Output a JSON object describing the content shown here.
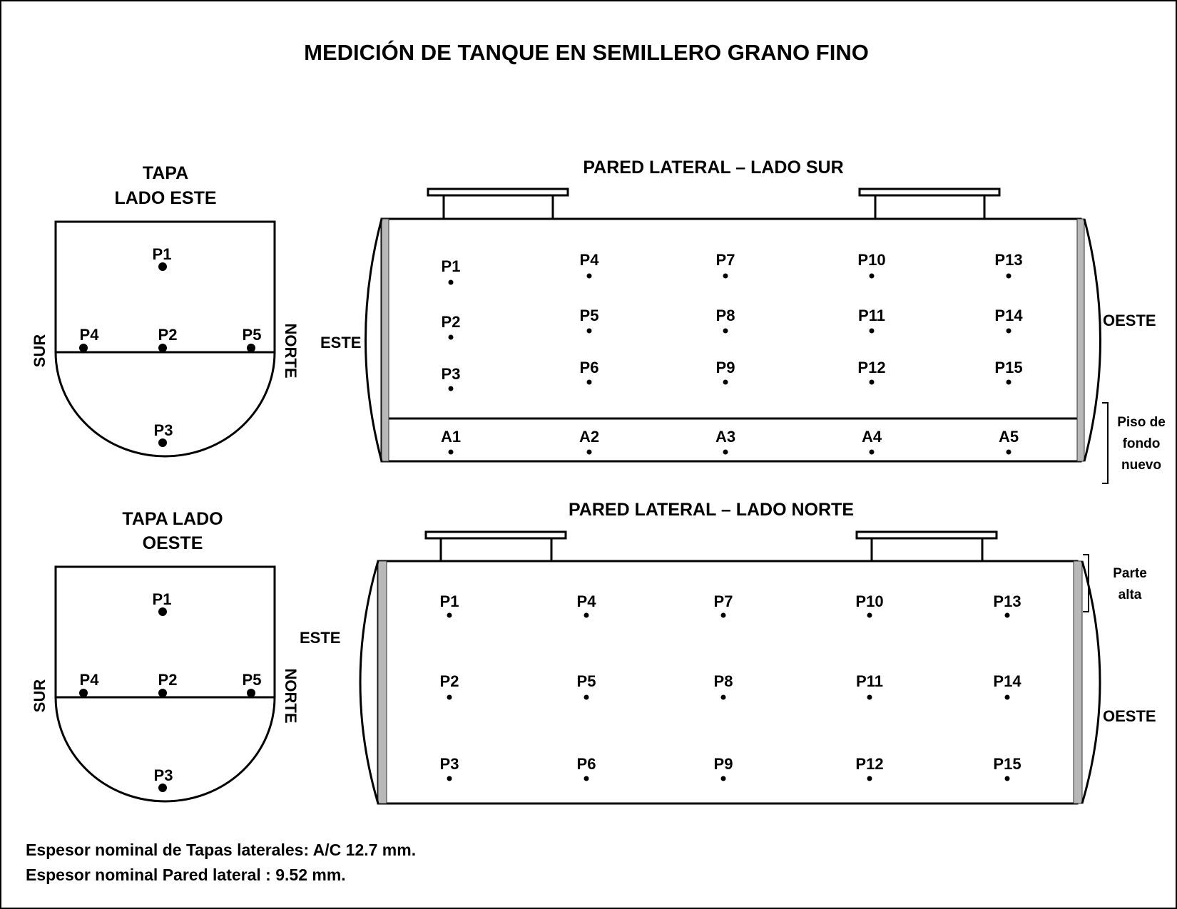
{
  "title": "MEDICIÓN DE TANQUE EN SEMILLERO GRANO FINO",
  "cap_east": {
    "title_line1": "TAPA",
    "title_line2": "LADO ESTE",
    "left_label": "SUR",
    "right_label": "NORTE",
    "points": [
      "P1",
      "P2",
      "P3",
      "P4",
      "P5"
    ]
  },
  "cap_west": {
    "title_line1": "TAPA LADO",
    "title_line2": "OESTE",
    "left_label": "SUR",
    "right_label": "NORTE",
    "points": [
      "P1",
      "P2",
      "P3",
      "P4",
      "P5"
    ]
  },
  "wall_south": {
    "title": "PARED LATERAL – LADO SUR",
    "left_label": "ESTE",
    "right_label": "OESTE",
    "points": [
      "P1",
      "P2",
      "P3",
      "P4",
      "P5",
      "P6",
      "P7",
      "P8",
      "P9",
      "P10",
      "P11",
      "P12",
      "P13",
      "P14",
      "P15"
    ],
    "floor_points": [
      "A1",
      "A2",
      "A3",
      "A4",
      "A5"
    ],
    "bracket_note": [
      "Piso de",
      "fondo",
      "nuevo"
    ]
  },
  "wall_north": {
    "title": "PARED LATERAL – LADO NORTE",
    "left_label": "ESTE",
    "right_label": "OESTE",
    "points": [
      "P1",
      "P2",
      "P3",
      "P4",
      "P5",
      "P6",
      "P7",
      "P8",
      "P9",
      "P10",
      "P11",
      "P12",
      "P13",
      "P14",
      "P15"
    ],
    "bracket_note": [
      "Parte",
      "alta"
    ]
  },
  "notes": [
    "Espesor nominal de Tapas laterales: A/C 12.7 mm.",
    "Espesor nominal Pared lateral : 9.52 mm."
  ]
}
